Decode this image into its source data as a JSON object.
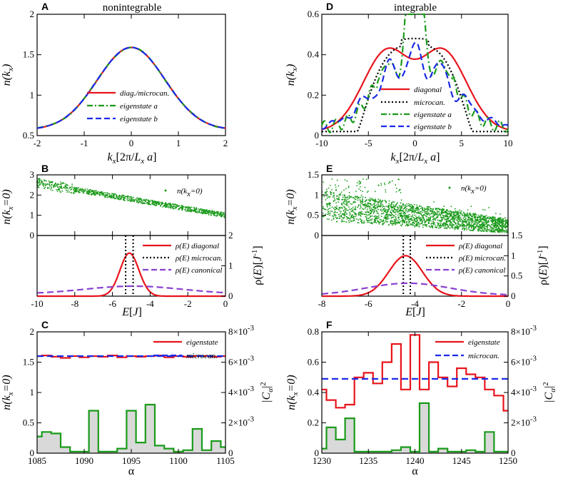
{
  "chart_data": [
    {
      "id": "A",
      "type": "line",
      "panel_label": "A",
      "title": "nonintegrable",
      "xlabel": "k_x[2π/L_x a]",
      "ylabel": "n(k_x)",
      "xlim": [
        -2,
        2
      ],
      "ylim": [
        0.5,
        2
      ],
      "xticks": [
        "-2",
        "-1",
        "0",
        "1",
        "2"
      ],
      "yticks": [
        "0.5",
        "1",
        "1.5",
        "2"
      ],
      "series": [
        {
          "name": "diag./microcan.",
          "color": "#e8141c",
          "style": "solid"
        },
        {
          "name": "eigenstate a",
          "color": "#1a9a1a",
          "style": "dashdot"
        },
        {
          "name": "eigenstate b",
          "color": "#1a2ae8",
          "style": "dashed"
        }
      ]
    },
    {
      "id": "B_top",
      "type": "scatter",
      "panel_label": "B",
      "ylabel": "n(k_x=0)",
      "xlim": [
        -10,
        0
      ],
      "ylim": [
        0,
        3
      ],
      "yticks": [
        "0",
        "1",
        "2",
        "3"
      ],
      "series": [
        {
          "name": "n(k_x=0)",
          "color": "#1a9a1a"
        }
      ]
    },
    {
      "id": "B_bottom",
      "type": "line",
      "xlabel": "E[J]",
      "ylabel": "ρ(E)[J^-1]",
      "xlim": [
        -10,
        0
      ],
      "ylim": [
        0,
        2
      ],
      "xticks": [
        "-10",
        "-8",
        "-6",
        "-4",
        "-2",
        "0"
      ],
      "yticks": [
        "0",
        "1",
        "2"
      ],
      "series": [
        {
          "name": "ρ(E) diagonal",
          "color": "#e8141c",
          "style": "solid"
        },
        {
          "name": "ρ(E) microcan.",
          "color": "#000000",
          "style": "dotted"
        },
        {
          "name": "ρ(E) canonical",
          "color": "#8a3fd0",
          "style": "dashed"
        }
      ]
    },
    {
      "id": "C",
      "type": "line",
      "panel_label": "C",
      "xlabel": "α",
      "ylabel": "n(k_x=0)",
      "ylabel_right": "|C_α|^2",
      "xlim": [
        1085,
        1105
      ],
      "ylim": [
        0,
        2
      ],
      "ylim_right": [
        0,
        0.008
      ],
      "xticks": [
        "1085",
        "1090",
        "1095",
        "1100",
        "1105"
      ],
      "yticks": [
        "0",
        "0.5",
        "1",
        "1.5",
        "2"
      ],
      "yticks_right": [
        "0",
        "2×10^-3",
        "4×10^-3",
        "6×10^-3",
        "8×10^-3"
      ],
      "series": [
        {
          "name": "eigenstate",
          "color": "#e8141c",
          "style": "step",
          "values": [
            1.6,
            1.61,
            1.59,
            1.57,
            1.6,
            1.58,
            1.6,
            1.59,
            1.61,
            1.58,
            1.6,
            1.59,
            1.6,
            1.61,
            1.58,
            1.6,
            1.59,
            1.6,
            1.6,
            1.59,
            1.6
          ]
        },
        {
          "name": "microcan.",
          "color": "#1a2ae8",
          "style": "dashed",
          "value": 1.6
        },
        {
          "name": "|C_α|^2",
          "color": "#1a9a1a",
          "style": "step-filled",
          "axis": "right",
          "values": [
            0.0011,
            0.0014,
            0.0013,
            0.0004,
            0.0001,
            0.0001,
            0.0028,
            0.0001,
            0.0001,
            0.0003,
            0.0028,
            0.0007,
            0.0032,
            0.0005,
            0.0003,
            0.0001,
            0.0002,
            0.0016,
            0.0002,
            0.0008,
            0.0004
          ]
        }
      ]
    },
    {
      "id": "D",
      "type": "line",
      "panel_label": "D",
      "title": "integrable",
      "xlabel": "k_x[2π/L_x a]",
      "ylabel": "n(k_x)",
      "xlim": [
        -10,
        10
      ],
      "ylim": [
        0,
        0.6
      ],
      "xticks": [
        "-10",
        "-5",
        "0",
        "5",
        "10"
      ],
      "yticks": [
        "0",
        "0.2",
        "0.4",
        "0.6"
      ],
      "series": [
        {
          "name": "diagonal",
          "color": "#e8141c",
          "style": "solid"
        },
        {
          "name": "microcan.",
          "color": "#000000",
          "style": "dotted"
        },
        {
          "name": "eigenstate a",
          "color": "#1a9a1a",
          "style": "dashdot"
        },
        {
          "name": "eigenstate b",
          "color": "#1a2ae8",
          "style": "dashed"
        }
      ]
    },
    {
      "id": "E_top",
      "type": "scatter",
      "panel_label": "E",
      "ylabel": "n(k_x=0)",
      "xlim": [
        -8,
        0
      ],
      "ylim": [
        0,
        1.5
      ],
      "yticks": [
        "0",
        "0.5",
        "1",
        "1.5"
      ],
      "series": [
        {
          "name": "n(k_x=0)",
          "color": "#1a9a1a"
        }
      ]
    },
    {
      "id": "E_bottom",
      "type": "line",
      "xlabel": "E[J]",
      "ylabel": "ρ(E)[J^-1]",
      "xlim": [
        -8,
        0
      ],
      "ylim": [
        0,
        1.5
      ],
      "xticks": [
        "-8",
        "-6",
        "-4",
        "-2",
        "0"
      ],
      "yticks": [
        "0",
        "0.5",
        "1",
        "1.5"
      ],
      "series": [
        {
          "name": "ρ(E) diagonal",
          "color": "#e8141c",
          "style": "solid"
        },
        {
          "name": "ρ(E) microcan.",
          "color": "#000000",
          "style": "dotted"
        },
        {
          "name": "ρ(E) canonical",
          "color": "#8a3fd0",
          "style": "dashed"
        }
      ]
    },
    {
      "id": "F",
      "type": "line",
      "panel_label": "F",
      "xlabel": "α",
      "ylabel": "n(k_x=0)",
      "ylabel_right": "|C_α|^2",
      "xlim": [
        1230,
        1250
      ],
      "ylim": [
        0,
        0.8
      ],
      "ylim_right": [
        0,
        0.008
      ],
      "xticks": [
        "1230",
        "1235",
        "1240",
        "1245",
        "1250"
      ],
      "yticks": [
        "0",
        "0.2",
        "0.4",
        "0.6",
        "0.8"
      ],
      "yticks_right": [
        "0",
        "2×10^-3",
        "4×10^-3",
        "6×10^-3",
        "8×10^-3"
      ],
      "series": [
        {
          "name": "eigenstate",
          "color": "#e8141c",
          "style": "step",
          "values": [
            0.42,
            0.35,
            0.3,
            0.32,
            0.5,
            0.53,
            0.46,
            0.6,
            0.72,
            0.42,
            0.78,
            0.42,
            0.6,
            0.5,
            0.44,
            0.56,
            0.52,
            0.5,
            0.42,
            0.38,
            0.28
          ]
        },
        {
          "name": "microcan.",
          "color": "#1a2ae8",
          "style": "dashed",
          "value": 0.49
        },
        {
          "name": "|C_α|^2",
          "color": "#1a9a1a",
          "style": "step-filled",
          "axis": "right",
          "values": [
            0.0003,
            0.0017,
            0.0009,
            0.0023,
            0.0001,
            0.0001,
            0.0001,
            0.0001,
            0.0002,
            0.0004,
            0.0001,
            0.0033,
            0.0001,
            0.0003,
            0.0001,
            0.0001,
            0.0002,
            0.0001,
            0.0014,
            0.0001,
            0.0001
          ]
        }
      ]
    }
  ]
}
